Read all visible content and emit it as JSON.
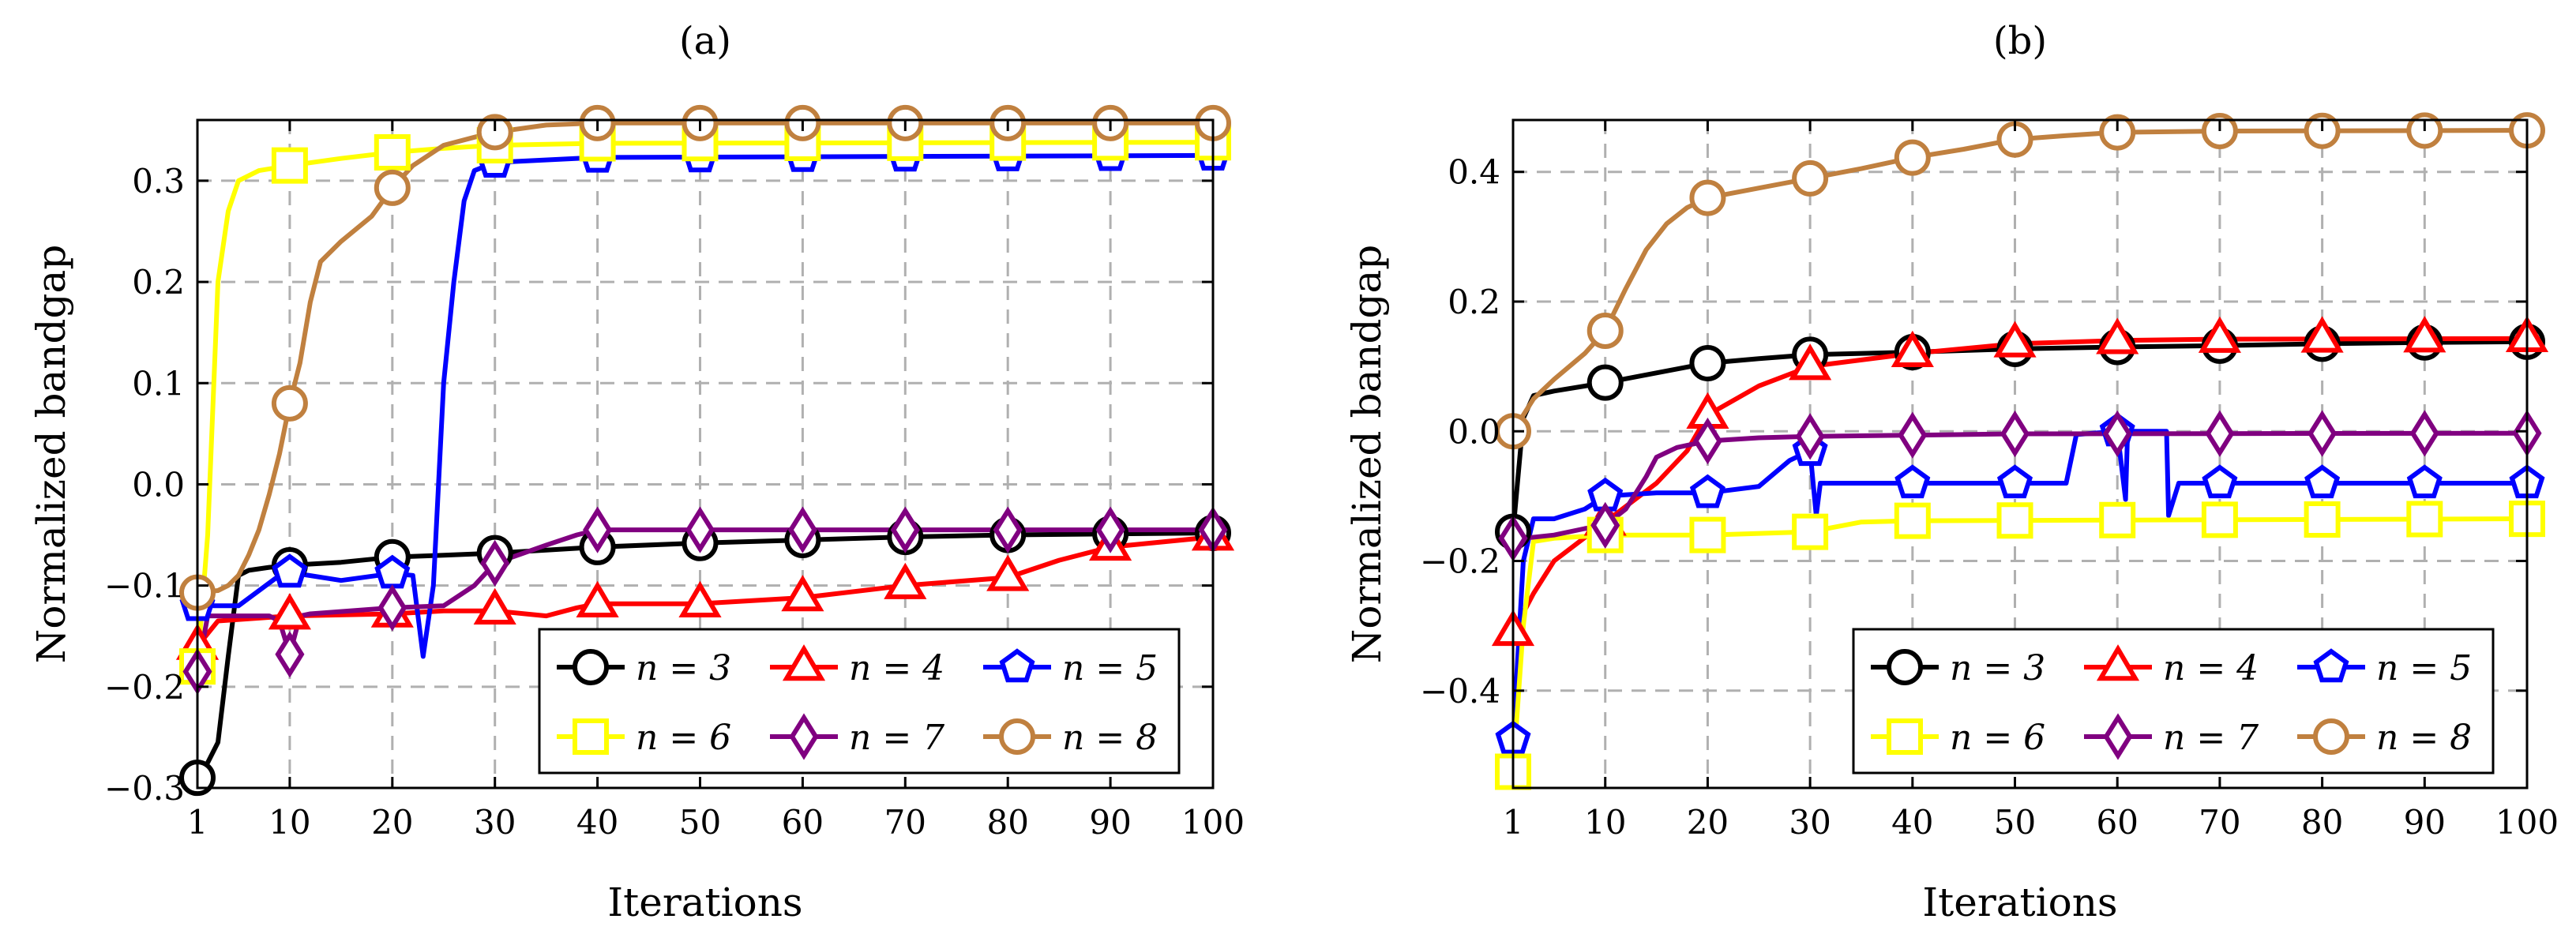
{
  "chart_data": [
    {
      "type": "line",
      "title": "(a)",
      "xlabel": "Iterations",
      "ylabel": "Normalized bandgap",
      "xlim": [
        1,
        100
      ],
      "ylim": [
        -0.3,
        0.36
      ],
      "xticks": [
        1,
        10,
        20,
        30,
        40,
        50,
        60,
        70,
        80,
        90,
        100
      ],
      "xtick_labels": [
        "1",
        "10",
        "20",
        "30",
        "40",
        "50",
        "60",
        "70",
        "80",
        "90",
        "100"
      ],
      "yticks": [
        -0.3,
        -0.2,
        -0.1,
        0.0,
        0.1,
        0.2,
        0.3
      ],
      "ytick_labels": [
        "−0.3",
        "−0.2",
        "−0.1",
        "0.0",
        "0.1",
        "0.2",
        "0.3"
      ],
      "grid": true,
      "legend_position": "bottom-right",
      "series": [
        {
          "name": "n = 3",
          "color": "#000000",
          "marker": "circle",
          "x": [
            1,
            2,
            3,
            4,
            5,
            6,
            8,
            10,
            15,
            20,
            25,
            30,
            35,
            40,
            50,
            60,
            70,
            80,
            90,
            100
          ],
          "y": [
            -0.29,
            -0.275,
            -0.255,
            -0.17,
            -0.09,
            -0.085,
            -0.082,
            -0.08,
            -0.077,
            -0.072,
            -0.07,
            -0.068,
            -0.065,
            -0.062,
            -0.058,
            -0.055,
            -0.052,
            -0.05,
            -0.049,
            -0.048
          ],
          "marker_x": [
            1,
            10,
            20,
            30,
            40,
            50,
            60,
            70,
            80,
            90,
            100
          ]
        },
        {
          "name": "n = 4",
          "color": "#ff0000",
          "marker": "triangle",
          "x": [
            1,
            3,
            10,
            20,
            25,
            30,
            35,
            38,
            40,
            50,
            60,
            70,
            80,
            85,
            90,
            100
          ],
          "y": [
            -0.16,
            -0.135,
            -0.13,
            -0.128,
            -0.125,
            -0.125,
            -0.13,
            -0.122,
            -0.118,
            -0.118,
            -0.112,
            -0.1,
            -0.092,
            -0.075,
            -0.062,
            -0.052
          ],
          "marker_x": [
            1,
            10,
            20,
            30,
            40,
            50,
            60,
            70,
            80,
            90,
            100
          ]
        },
        {
          "name": "n = 5",
          "color": "#0000ff",
          "marker": "pentagon",
          "x": [
            1,
            5,
            9,
            10,
            15,
            20,
            22,
            23,
            24,
            25,
            26,
            27,
            28,
            30,
            40,
            100
          ],
          "y": [
            -0.12,
            -0.12,
            -0.09,
            -0.087,
            -0.095,
            -0.088,
            -0.09,
            -0.17,
            -0.1,
            0.1,
            0.2,
            0.28,
            0.31,
            0.318,
            0.323,
            0.325
          ],
          "marker_x": [
            1,
            10,
            20,
            30,
            40,
            50,
            60,
            70,
            80,
            90,
            100
          ]
        },
        {
          "name": "n = 6",
          "color": "#ffff00",
          "marker": "square",
          "x": [
            1,
            2,
            3,
            4,
            5,
            7,
            10,
            15,
            20,
            25,
            30,
            40,
            100
          ],
          "y": [
            -0.18,
            -0.05,
            0.2,
            0.27,
            0.3,
            0.31,
            0.315,
            0.322,
            0.328,
            0.332,
            0.335,
            0.337,
            0.338
          ],
          "marker_x": [
            1,
            10,
            20,
            30,
            40,
            50,
            60,
            70,
            80,
            90,
            100
          ]
        },
        {
          "name": "n = 7",
          "color": "#800080",
          "marker": "diamond",
          "x": [
            1,
            2,
            8,
            9,
            10,
            11,
            12,
            20,
            25,
            28,
            30,
            35,
            38,
            40,
            50,
            100
          ],
          "y": [
            -0.185,
            -0.13,
            -0.13,
            -0.135,
            -0.168,
            -0.13,
            -0.128,
            -0.122,
            -0.12,
            -0.1,
            -0.078,
            -0.06,
            -0.05,
            -0.045,
            -0.045,
            -0.045
          ],
          "marker_x": [
            1,
            10,
            20,
            30,
            40,
            50,
            60,
            70,
            80,
            90,
            100
          ]
        },
        {
          "name": "n = 8",
          "color": "#c0803f",
          "marker": "circle",
          "x": [
            1,
            3,
            4,
            5,
            6,
            7,
            8,
            9,
            10,
            11,
            12,
            13,
            15,
            18,
            20,
            22,
            25,
            28,
            30,
            35,
            40,
            50,
            100
          ],
          "y": [
            -0.107,
            -0.105,
            -0.1,
            -0.09,
            -0.07,
            -0.045,
            -0.01,
            0.03,
            0.08,
            0.12,
            0.18,
            0.22,
            0.24,
            0.265,
            0.293,
            0.315,
            0.335,
            0.343,
            0.348,
            0.355,
            0.357,
            0.357,
            0.357
          ],
          "marker_x": [
            1,
            10,
            20,
            30,
            40,
            50,
            60,
            70,
            80,
            90,
            100
          ]
        }
      ]
    },
    {
      "type": "line",
      "title": "(b)",
      "xlabel": "Iterations",
      "ylabel": "Normalized bandgap",
      "xlim": [
        1,
        100
      ],
      "ylim": [
        -0.55,
        0.48
      ],
      "xticks": [
        1,
        10,
        20,
        30,
        40,
        50,
        60,
        70,
        80,
        90,
        100
      ],
      "xtick_labels": [
        "1",
        "10",
        "20",
        "30",
        "40",
        "50",
        "60",
        "70",
        "80",
        "90",
        "100"
      ],
      "yticks": [
        -0.4,
        -0.2,
        0.0,
        0.2,
        0.4
      ],
      "ytick_labels": [
        "−0.4",
        "−0.2",
        "0.0",
        "0.2",
        "0.4"
      ],
      "grid": true,
      "legend_position": "bottom-right",
      "series": [
        {
          "name": "n = 3",
          "color": "#000000",
          "marker": "circle",
          "x": [
            1,
            2,
            3,
            5,
            10,
            15,
            20,
            25,
            30,
            40,
            50,
            60,
            70,
            80,
            90,
            100
          ],
          "y": [
            -0.155,
            0.02,
            0.055,
            0.062,
            0.075,
            0.09,
            0.105,
            0.112,
            0.118,
            0.122,
            0.127,
            0.13,
            0.132,
            0.135,
            0.137,
            0.138
          ],
          "marker_x": [
            1,
            10,
            20,
            30,
            40,
            50,
            60,
            70,
            80,
            90,
            100
          ]
        },
        {
          "name": "n = 4",
          "color": "#ff0000",
          "marker": "triangle",
          "x": [
            1,
            3,
            5,
            10,
            15,
            18,
            20,
            25,
            30,
            35,
            40,
            50,
            60,
            70,
            100
          ],
          "y": [
            -0.31,
            -0.25,
            -0.2,
            -0.14,
            -0.08,
            -0.03,
            0.025,
            0.07,
            0.1,
            0.11,
            0.12,
            0.135,
            0.14,
            0.142,
            0.143
          ],
          "marker_x": [
            1,
            10,
            20,
            30,
            40,
            50,
            60,
            70,
            80,
            90,
            100
          ]
        },
        {
          "name": "n = 5",
          "color": "#0000ff",
          "marker": "pentagon",
          "x": [
            1,
            2,
            3,
            5,
            8,
            10,
            15,
            20,
            25,
            28,
            30,
            30.6,
            31,
            35,
            40,
            50,
            55,
            56,
            60,
            60.8,
            61,
            61.5,
            62,
            64,
            64.8,
            65,
            66,
            70,
            80,
            90,
            100
          ],
          "y": [
            -0.475,
            -0.2,
            -0.135,
            -0.135,
            -0.12,
            -0.1,
            -0.095,
            -0.095,
            -0.085,
            -0.045,
            -0.03,
            -0.13,
            -0.08,
            -0.08,
            -0.08,
            -0.08,
            -0.08,
            -0.005,
            0.0,
            -0.105,
            0.0,
            0.0,
            0.0,
            0.0,
            0.0,
            -0.13,
            -0.08,
            -0.08,
            -0.08,
            -0.08,
            -0.08
          ],
          "marker_x": [
            1,
            10,
            20,
            30,
            40,
            50,
            60,
            70,
            80,
            90,
            100
          ]
        },
        {
          "name": "n = 6",
          "color": "#ffff00",
          "marker": "square",
          "x": [
            1,
            2,
            3,
            5,
            10,
            20,
            30,
            35,
            40,
            100
          ],
          "y": [
            -0.525,
            -0.3,
            -0.17,
            -0.165,
            -0.16,
            -0.16,
            -0.155,
            -0.14,
            -0.138,
            -0.135
          ],
          "marker_x": [
            1,
            10,
            20,
            30,
            40,
            50,
            60,
            70,
            80,
            90,
            100
          ]
        },
        {
          "name": "n = 7",
          "color": "#800080",
          "marker": "diamond",
          "x": [
            1,
            2,
            5,
            8,
            10,
            12,
            14,
            15,
            17,
            20,
            25,
            30,
            40,
            50,
            100
          ],
          "y": [
            -0.165,
            -0.165,
            -0.16,
            -0.15,
            -0.145,
            -0.12,
            -0.07,
            -0.04,
            -0.025,
            -0.015,
            -0.01,
            -0.008,
            -0.006,
            -0.004,
            -0.003
          ],
          "marker_x": [
            1,
            10,
            20,
            30,
            40,
            50,
            60,
            70,
            80,
            90,
            100
          ]
        },
        {
          "name": "n = 8",
          "color": "#c0803f",
          "marker": "circle",
          "x": [
            1,
            3,
            5,
            8,
            10,
            12,
            14,
            16,
            18,
            20,
            25,
            30,
            35,
            40,
            45,
            50,
            55,
            60,
            70,
            100
          ],
          "y": [
            0.0,
            0.05,
            0.08,
            0.12,
            0.155,
            0.22,
            0.28,
            0.32,
            0.345,
            0.36,
            0.375,
            0.39,
            0.405,
            0.422,
            0.435,
            0.45,
            0.456,
            0.461,
            0.463,
            0.464
          ],
          "marker_x": [
            1,
            10,
            20,
            30,
            40,
            50,
            60,
            70,
            80,
            90,
            100
          ]
        }
      ]
    }
  ]
}
